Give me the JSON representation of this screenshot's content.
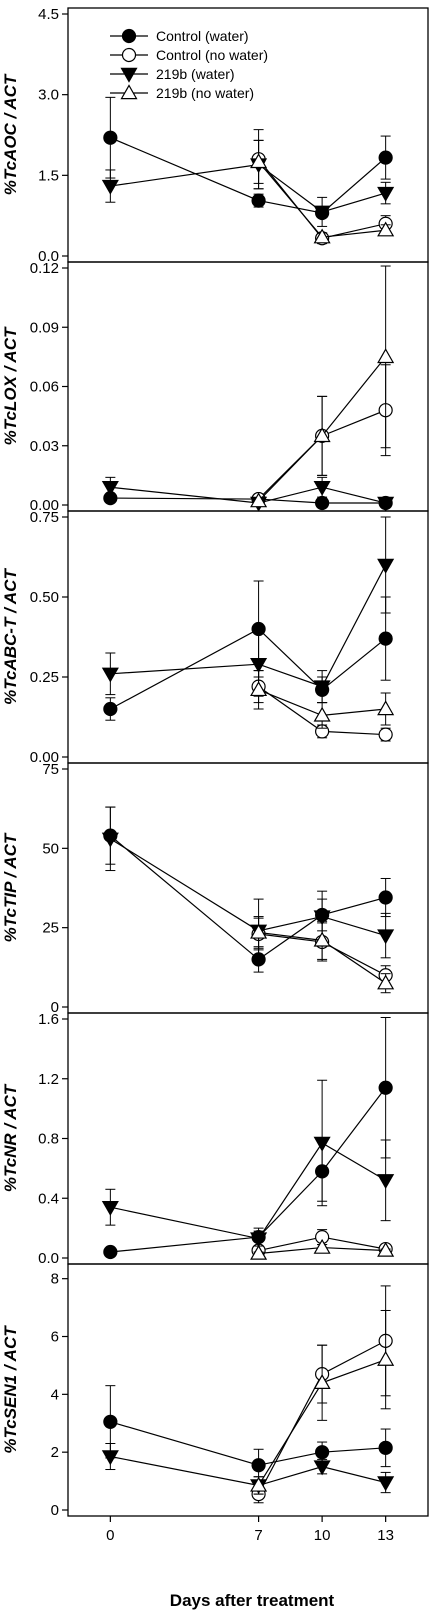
{
  "chart_data": {
    "type": "line",
    "xlabel": "Days after treatment",
    "x": [
      0,
      7,
      10,
      13
    ],
    "x_tick_labels": [
      "0",
      "7",
      "10",
      "13"
    ],
    "legend": {
      "placement": "top-left",
      "entries": [
        {
          "label": "Control (water)",
          "marker": "circle-filled"
        },
        {
          "label": "Control (no water)",
          "marker": "circle-open"
        },
        {
          "label": "219b (water)",
          "marker": "triangle-down-filled"
        },
        {
          "label": "219b (no water)",
          "marker": "triangle-up-open"
        }
      ]
    },
    "panels": [
      {
        "ylabel": "%TcAOC / ACT",
        "ylim": [
          0,
          4.5
        ],
        "yticks": [
          0,
          1.5,
          3.0,
          4.5
        ],
        "ytick_labels": [
          "0.0",
          "1.5",
          "3.0",
          "4.5"
        ],
        "series": [
          {
            "name": "Control (water)",
            "x": [
              0,
              7,
              10,
              13
            ],
            "y": [
              2.2,
              1.03,
              0.8,
              1.83
            ],
            "err": [
              0.75,
              0.12,
              0.08,
              0.4
            ]
          },
          {
            "name": "Control (no water)",
            "x": [
              7,
              10,
              13
            ],
            "y": [
              1.8,
              0.33,
              0.6
            ],
            "err": [
              0.55,
              0.1,
              0.15
            ]
          },
          {
            "name": "219b (water)",
            "x": [
              0,
              7,
              10,
              13
            ],
            "y": [
              1.3,
              1.7,
              0.82,
              1.17
            ],
            "err": [
              0.3,
              0.45,
              0.27,
              0.2
            ]
          },
          {
            "name": "219b (no water)",
            "x": [
              7,
              10,
              13
            ],
            "y": [
              1.75,
              0.35,
              0.48
            ],
            "err": [
              0.4,
              0.08,
              0.1
            ]
          }
        ]
      },
      {
        "ylabel": "%TcLOX / ACT",
        "ylim": [
          0,
          0.12
        ],
        "yticks": [
          0,
          0.03,
          0.06,
          0.09,
          0.12
        ],
        "ytick_labels": [
          "0.00",
          "0.03",
          "0.06",
          "0.09",
          "0.12"
        ],
        "series": [
          {
            "name": "Control (water)",
            "x": [
              0,
              7,
              10,
              13
            ],
            "y": [
              0.0035,
              0.003,
              0.001,
              0.001
            ],
            "err": [
              0.002,
              0.001,
              0.001,
              0.001
            ]
          },
          {
            "name": "Control (no water)",
            "x": [
              7,
              10,
              13
            ],
            "y": [
              0.003,
              0.035,
              0.048
            ],
            "err": [
              0.002,
              0.02,
              0.023
            ]
          },
          {
            "name": "219b (water)",
            "x": [
              0,
              7,
              10,
              13
            ],
            "y": [
              0.009,
              0.001,
              0.009,
              0.001
            ],
            "err": [
              0.005,
              0.001,
              0.005,
              0.001
            ]
          },
          {
            "name": "219b (no water)",
            "x": [
              7,
              10,
              13
            ],
            "y": [
              0.002,
              0.035,
              0.075
            ],
            "err": [
              0.001,
              0.02,
              0.046
            ]
          }
        ]
      },
      {
        "ylabel": "%TcABC-T / ACT",
        "ylim": [
          0,
          0.75
        ],
        "yticks": [
          0,
          0.25,
          0.5,
          0.75
        ],
        "ytick_labels": [
          "0.00",
          "0.25",
          "0.50",
          "0.75"
        ],
        "series": [
          {
            "name": "Control (water)",
            "x": [
              0,
              7,
              10,
              13
            ],
            "y": [
              0.15,
              0.4,
              0.21,
              0.37
            ],
            "err": [
              0.035,
              0.15,
              0.04,
              0.13
            ]
          },
          {
            "name": "Control (no water)",
            "x": [
              7,
              10,
              13
            ],
            "y": [
              0.22,
              0.08,
              0.07
            ],
            "err": [
              0.05,
              0.02,
              0.02
            ]
          },
          {
            "name": "219b (water)",
            "x": [
              0,
              7,
              10,
              13
            ],
            "y": [
              0.26,
              0.29,
              0.22,
              0.6
            ],
            "err": [
              0.065,
              0.1,
              0.05,
              0.15
            ]
          },
          {
            "name": "219b (no water)",
            "x": [
              7,
              10,
              13
            ],
            "y": [
              0.21,
              0.13,
              0.15
            ],
            "err": [
              0.06,
              0.04,
              0.05
            ]
          }
        ]
      },
      {
        "ylabel": "%TcTIP / ACT",
        "ylim": [
          0,
          75
        ],
        "yticks": [
          0,
          25,
          50,
          75
        ],
        "ytick_labels": [
          "0",
          "25",
          "50",
          "75"
        ],
        "series": [
          {
            "name": "Control (water)",
            "x": [
              0,
              7,
              10,
              13
            ],
            "y": [
              54,
              15,
              29,
              34.5
            ],
            "err": [
              9,
              4,
              5,
              6
            ]
          },
          {
            "name": "Control (no water)",
            "x": [
              7,
              10,
              13
            ],
            "y": [
              23,
              20.5,
              10
            ],
            "err": [
              5,
              6,
              3
            ]
          },
          {
            "name": "219b (water)",
            "x": [
              0,
              7,
              10,
              13
            ],
            "y": [
              53,
              24,
              28.5,
              22.5
            ],
            "err": [
              10,
              10,
              8,
              7
            ]
          },
          {
            "name": "219b (no water)",
            "x": [
              7,
              10,
              13
            ],
            "y": [
              23.5,
              21,
              7.5
            ],
            "err": [
              5,
              6,
              3
            ]
          }
        ]
      },
      {
        "ylabel": "%TcNR / ACT",
        "ylim": [
          0,
          1.6
        ],
        "yticks": [
          0,
          0.4,
          0.8,
          1.2,
          1.6
        ],
        "ytick_labels": [
          "0.0",
          "0.4",
          "0.8",
          "1.2",
          "1.6"
        ],
        "series": [
          {
            "name": "Control (water)",
            "x": [
              0,
              7,
              10,
              13
            ],
            "y": [
              0.04,
              0.14,
              0.58,
              1.14
            ],
            "err": [
              0.01,
              0.06,
              0.2,
              0.47
            ]
          },
          {
            "name": "Control (no water)",
            "x": [
              7,
              10,
              13
            ],
            "y": [
              0.05,
              0.14,
              0.06
            ],
            "err": [
              0.02,
              0.05,
              0.02
            ]
          },
          {
            "name": "219b (water)",
            "x": [
              0,
              7,
              10,
              13
            ],
            "y": [
              0.34,
              0.13,
              0.77,
              0.52
            ],
            "err": [
              0.12,
              0.05,
              0.42,
              0.27
            ]
          },
          {
            "name": "219b (no water)",
            "x": [
              7,
              10,
              13
            ],
            "y": [
              0.03,
              0.07,
              0.05
            ],
            "err": [
              0.01,
              0.02,
              0.01
            ]
          }
        ]
      },
      {
        "ylabel": "%TcSEN1 / ACT",
        "ylim": [
          0,
          8.3
        ],
        "yticks": [
          0,
          2,
          4,
          6,
          8
        ],
        "ytick_labels": [
          "0",
          "2",
          "4",
          "6",
          "8"
        ],
        "series": [
          {
            "name": "Control (water)",
            "x": [
              0,
              7,
              10,
              13
            ],
            "y": [
              3.05,
              1.55,
              2.0,
              2.15
            ],
            "err": [
              1.25,
              0.55,
              0.35,
              0.65
            ]
          },
          {
            "name": "Control (no water)",
            "x": [
              7,
              10,
              13
            ],
            "y": [
              0.55,
              4.7,
              5.85
            ],
            "err": [
              0.3,
              1.0,
              1.9
            ]
          },
          {
            "name": "219b (water)",
            "x": [
              0,
              7,
              10,
              13
            ],
            "y": [
              1.85,
              0.85,
              1.5,
              0.95
            ],
            "err": [
              0.45,
              0.3,
              0.25,
              0.35
            ]
          },
          {
            "name": "219b (no water)",
            "x": [
              7,
              10,
              13
            ],
            "y": [
              0.85,
              4.4,
              5.2
            ],
            "err": [
              0.3,
              1.3,
              1.7
            ]
          }
        ]
      }
    ]
  }
}
